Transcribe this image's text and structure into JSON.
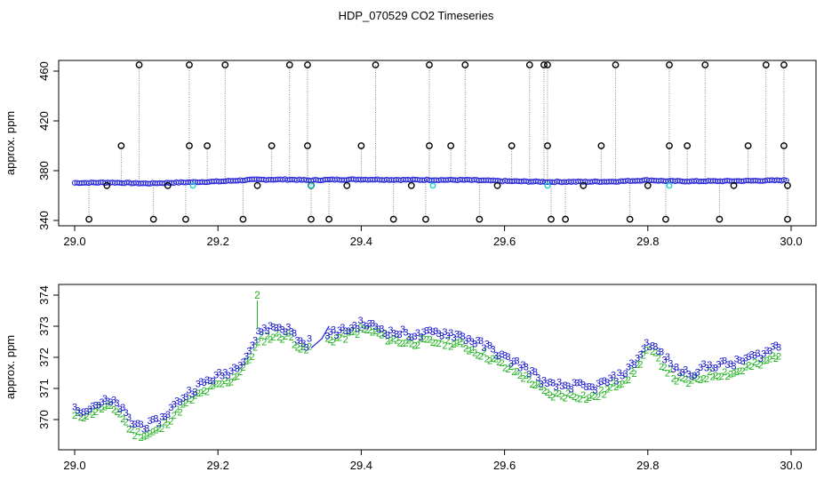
{
  "title": "HDP_070529  CO2 Timeseries",
  "colors": {
    "raw_points": "#000000",
    "raw_lines": "#888888",
    "series_2": "#22b222",
    "series_3": "#1515cc",
    "cyan_marks": "#22cccc",
    "spline": "#2a2ad8"
  },
  "chart_data": [
    {
      "type": "scatter",
      "ylabel": "approx. ppm",
      "xlim": [
        29.0,
        30.0
      ],
      "ylim": [
        340,
        465
      ],
      "x_ticks": [
        29.0,
        29.2,
        29.4,
        29.6,
        29.8,
        30.0
      ],
      "y_ticks": [
        340,
        380,
        420,
        460
      ],
      "baseline": {
        "x": [
          29.0,
          29.05,
          29.1,
          29.15,
          29.2,
          29.25,
          29.3,
          29.33,
          29.35,
          29.4,
          29.45,
          29.5,
          29.55,
          29.6,
          29.66,
          29.7,
          29.75,
          29.8,
          29.83,
          29.85,
          29.9,
          29.95,
          29.99
        ],
        "y": [
          370.2,
          370.5,
          369.7,
          370.6,
          371.3,
          372.8,
          372.9,
          372.2,
          372.7,
          373.0,
          372.7,
          372.6,
          372.5,
          371.6,
          371.0,
          371.1,
          371.2,
          372.4,
          371.6,
          371.5,
          371.6,
          371.9,
          372.3
        ]
      },
      "high_outliers": {
        "x": [
          29.09,
          29.16,
          29.21,
          29.3,
          29.325,
          29.42,
          29.495,
          29.545,
          29.635,
          29.655,
          29.66,
          29.755,
          29.83,
          29.88,
          29.965,
          29.99
        ],
        "y": [
          465,
          465,
          465,
          465,
          465,
          465,
          465,
          465,
          465,
          465,
          465,
          465,
          465,
          465,
          465,
          465
        ]
      },
      "mid_outliers": {
        "x": [
          29.065,
          29.16,
          29.185,
          29.275,
          29.325,
          29.4,
          29.495,
          29.525,
          29.61,
          29.66,
          29.735,
          29.83,
          29.855,
          29.94,
          29.99
        ],
        "y": [
          400,
          400,
          400,
          400,
          400,
          400,
          400,
          400,
          400,
          400,
          400,
          400,
          400,
          400,
          400
        ]
      },
      "low_outliers": {
        "x": [
          29.02,
          29.11,
          29.155,
          29.235,
          29.33,
          29.355,
          29.445,
          29.49,
          29.565,
          29.665,
          29.685,
          29.775,
          29.825,
          29.9,
          29.995
        ],
        "y": [
          341,
          341,
          341,
          341,
          341,
          341,
          341,
          341,
          341,
          341,
          341,
          341,
          341,
          341,
          341
        ]
      },
      "slight_outliers": {
        "x": [
          29.045,
          29.13,
          29.255,
          29.33,
          29.38,
          29.47,
          29.59,
          29.71,
          29.8,
          29.92,
          29.995
        ],
        "y": [
          368,
          368,
          368,
          368,
          368,
          368,
          368,
          368,
          368,
          368,
          368
        ]
      },
      "cyan_marks": {
        "x": [
          29.165,
          29.33,
          29.5,
          29.66,
          29.83
        ],
        "y": [
          368,
          368,
          368,
          368,
          368
        ]
      }
    },
    {
      "type": "scatter",
      "ylabel": "approx. ppm",
      "xlim": [
        29.0,
        30.0
      ],
      "ylim": [
        369.2,
        374.2
      ],
      "x_ticks": [
        29.0,
        29.2,
        29.4,
        29.6,
        29.8,
        30.0
      ],
      "y_ticks": [
        370,
        371,
        372,
        373,
        374
      ],
      "series": [
        {
          "name": "3",
          "x": [
            29.0,
            29.02,
            29.04,
            29.06,
            29.08,
            29.1,
            29.12,
            29.14,
            29.16,
            29.18,
            29.2,
            29.22,
            29.24,
            29.26,
            29.28,
            29.3,
            29.32,
            29.34,
            29.36,
            29.38,
            29.4,
            29.42,
            29.44,
            29.46,
            29.48,
            29.5,
            29.52,
            29.54,
            29.56,
            29.58,
            29.6,
            29.62,
            29.64,
            29.66,
            29.68,
            29.7,
            29.72,
            29.74,
            29.76,
            29.78,
            29.8,
            29.82,
            29.84,
            29.86,
            29.88,
            29.9,
            29.92,
            29.94,
            29.96,
            29.98
          ],
          "y": [
            370.3,
            370.4,
            370.6,
            370.5,
            369.9,
            369.8,
            370.0,
            370.5,
            370.9,
            371.2,
            371.4,
            371.6,
            372.1,
            372.9,
            373.0,
            372.9,
            372.4,
            372.7,
            372.8,
            372.9,
            373.1,
            373.0,
            372.8,
            372.8,
            372.7,
            372.8,
            372.8,
            372.7,
            372.5,
            372.3,
            372.0,
            371.8,
            371.5,
            371.1,
            371.1,
            371.1,
            371.0,
            371.2,
            371.4,
            371.8,
            372.5,
            372.1,
            371.6,
            371.5,
            371.7,
            371.8,
            371.8,
            372.0,
            372.1,
            372.4
          ]
        },
        {
          "name": "2",
          "x": [
            29.0,
            29.02,
            29.04,
            29.06,
            29.08,
            29.1,
            29.12,
            29.14,
            29.16,
            29.18,
            29.2,
            29.22,
            29.24,
            29.26,
            29.28,
            29.3,
            29.32,
            29.34,
            29.36,
            29.38,
            29.4,
            29.42,
            29.44,
            29.46,
            29.48,
            29.5,
            29.52,
            29.54,
            29.56,
            29.58,
            29.6,
            29.62,
            29.64,
            29.66,
            29.68,
            29.7,
            29.72,
            29.74,
            29.76,
            29.78,
            29.8,
            29.82,
            29.84,
            29.86,
            29.88,
            29.9,
            29.92,
            29.94,
            29.96,
            29.98
          ],
          "y": [
            370.1,
            370.2,
            370.4,
            370.3,
            369.6,
            369.5,
            369.7,
            370.2,
            370.6,
            370.9,
            371.1,
            371.3,
            371.8,
            372.6,
            372.7,
            372.7,
            372.2,
            372.5,
            372.6,
            372.7,
            372.9,
            372.8,
            372.6,
            372.5,
            372.5,
            372.5,
            372.5,
            372.4,
            372.2,
            372.0,
            371.7,
            371.5,
            371.2,
            370.8,
            370.8,
            370.8,
            370.7,
            370.9,
            371.2,
            371.5,
            372.3,
            371.8,
            371.3,
            371.2,
            371.4,
            371.5,
            371.5,
            371.7,
            371.8,
            372.1
          ]
        }
      ],
      "spike": {
        "x": 29.255,
        "y": 374.0
      },
      "spline_segment": {
        "x": [
          29.33,
          29.345,
          29.355
        ],
        "y": [
          372.3,
          372.6,
          373.0
        ]
      }
    }
  ]
}
